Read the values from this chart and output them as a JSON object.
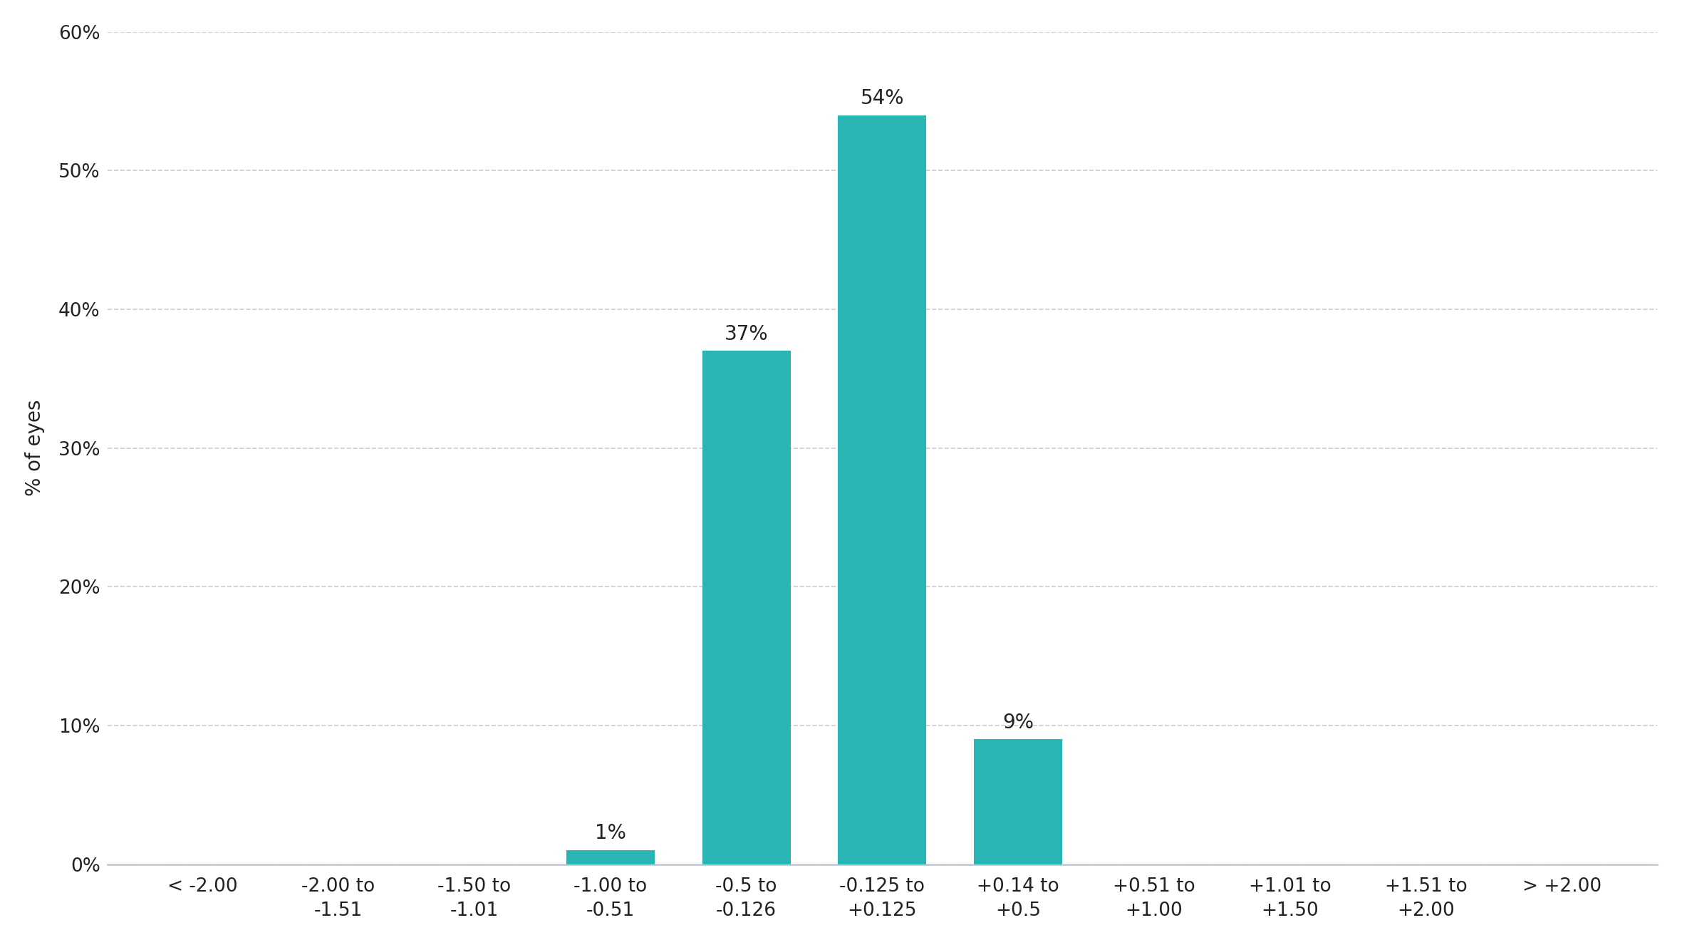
{
  "categories": [
    "< -2.00",
    "-2.00 to\n-1.51",
    "-1.50 to\n-1.01",
    "-1.00 to\n-0.51",
    "-0.5 to\n-0.126",
    "-0.125 to\n+0.125",
    "+0.14 to\n+0.5",
    "+0.51 to\n+1.00",
    "+1.01 to\n+1.50",
    "+1.51 to\n+2.00",
    "> +2.00"
  ],
  "values": [
    0,
    0,
    0,
    1,
    37,
    54,
    9,
    0,
    0,
    0,
    0
  ],
  "bar_color": "#2ab5b5",
  "ylabel": "% of eyes",
  "ylim": [
    0,
    60
  ],
  "yticks": [
    0,
    10,
    20,
    30,
    40,
    50,
    60
  ],
  "ytick_labels": [
    "0%",
    "10%",
    "20%",
    "30%",
    "40%",
    "50%",
    "60%"
  ],
  "grid_color": "#c8ced4",
  "background_color": "#ffffff",
  "label_fontsize": 20,
  "tick_fontsize": 19,
  "bar_label_fontsize": 20,
  "axis_bottom_color": "#c8ced4",
  "bar_width": 0.65
}
